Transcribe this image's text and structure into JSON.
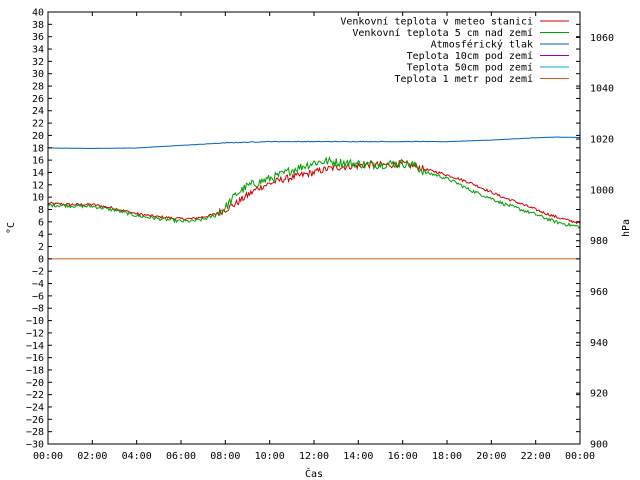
{
  "chart_data": {
    "type": "line",
    "xlabel": "Čas",
    "ylabel": "°C",
    "y2label": "hPa",
    "x_ticks": [
      "00:00",
      "02:00",
      "04:00",
      "06:00",
      "08:00",
      "10:00",
      "12:00",
      "14:00",
      "16:00",
      "18:00",
      "20:00",
      "22:00",
      "00:00"
    ],
    "xlim_hours": [
      0,
      24
    ],
    "ylim": [
      -30,
      40
    ],
    "y_tick_step": 2,
    "y2lim": [
      900,
      1070
    ],
    "y2_ticks": [
      900,
      920,
      940,
      960,
      980,
      1000,
      1020,
      1040,
      1060
    ],
    "legend_position": "top-right",
    "grid": false,
    "series": [
      {
        "name": "Venkovní teplota v meteo stanici",
        "color": "#d00000",
        "axis": "y1",
        "x": [
          0,
          1,
          2,
          3,
          4,
          5,
          6,
          6.5,
          7,
          7.5,
          8,
          8.5,
          9,
          9.5,
          10,
          10.5,
          11,
          11.5,
          12,
          12.5,
          13,
          13.5,
          14,
          14.5,
          15,
          15.5,
          16,
          16.5,
          17,
          17.5,
          18,
          18.5,
          19,
          19.5,
          20,
          20.5,
          21,
          21.5,
          22,
          22.5,
          23,
          23.5,
          24
        ],
        "y": [
          9,
          8.8,
          8.8,
          8.2,
          7.3,
          6.8,
          6.5,
          6.5,
          6.8,
          7.2,
          8.0,
          9.0,
          10.3,
          11.5,
          12.2,
          12.8,
          13.2,
          13.6,
          14.0,
          14.5,
          14.8,
          15.0,
          15.1,
          15.3,
          15.2,
          15.3,
          15.4,
          15.1,
          14.5,
          14.1,
          13.6,
          13.0,
          12.4,
          11.6,
          10.8,
          10.0,
          9.4,
          8.7,
          8.0,
          7.3,
          6.7,
          6.2,
          5.8
        ],
        "noise": 0.35
      },
      {
        "name": "Venkovní teplota 5 cm nad zemí",
        "color": "#00a000",
        "axis": "y1",
        "x": [
          0,
          1,
          2,
          3,
          4,
          5,
          6,
          6.5,
          7,
          7.5,
          8,
          8.5,
          9,
          9.5,
          10,
          10.5,
          11,
          11.5,
          12,
          12.5,
          13,
          13.5,
          14,
          14.5,
          15,
          15.5,
          16,
          16.5,
          17,
          17.5,
          18,
          18.5,
          19,
          19.5,
          20,
          20.5,
          21,
          21.5,
          22,
          22.5,
          23,
          23.5,
          24
        ],
        "y": [
          8.7,
          8.6,
          8.5,
          7.9,
          7.0,
          6.5,
          6.1,
          6.1,
          6.4,
          7.0,
          8.3,
          10.5,
          11.8,
          12.4,
          13.0,
          13.6,
          14.4,
          15.0,
          15.6,
          15.8,
          15.7,
          15.5,
          15.4,
          15.3,
          15.3,
          15.4,
          15.5,
          15.2,
          14.0,
          13.6,
          13.0,
          12.2,
          11.2,
          10.5,
          9.8,
          9.0,
          8.4,
          7.8,
          7.2,
          6.5,
          5.9,
          5.5,
          5.2
        ],
        "noise": 0.45
      },
      {
        "name": "Atmosférický tlak",
        "color": "#0060c0",
        "axis": "y2",
        "x": [
          0,
          2,
          4,
          6,
          8,
          10,
          12,
          14,
          16,
          18,
          20,
          22,
          23,
          24
        ],
        "y": [
          1016.5,
          1016.3,
          1016.5,
          1017.5,
          1018.5,
          1019.0,
          1019.0,
          1019.0,
          1019.0,
          1019.0,
          1019.6,
          1020.5,
          1020.8,
          1020.6
        ],
        "noise": 0.08
      },
      {
        "name": "Teplota 10cm pod zemí",
        "color": "#a000a0",
        "axis": "y1",
        "x": [],
        "y": []
      },
      {
        "name": "Teplota 50cm pod zemí",
        "color": "#00b0c0",
        "axis": "y1",
        "x": [],
        "y": []
      },
      {
        "name": "Teplota 1 metr pod zemí",
        "color": "#d06020",
        "axis": "y1",
        "x": [
          0,
          24
        ],
        "y": [
          0,
          0
        ]
      }
    ]
  }
}
